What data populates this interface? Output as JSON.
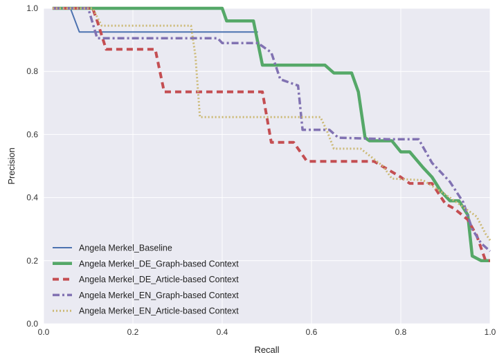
{
  "chart_data": {
    "type": "line",
    "xlabel": "Recall",
    "ylabel": "Precision",
    "xlim": [
      0.0,
      1.0
    ],
    "ylim": [
      0.0,
      1.0
    ],
    "grid": true,
    "legend_position": "lower-left",
    "x_ticks": [
      "0.0",
      "0.2",
      "0.4",
      "0.6",
      "0.8",
      "1.0"
    ],
    "y_ticks": [
      "0.0",
      "0.2",
      "0.4",
      "0.6",
      "0.8",
      "1.0"
    ],
    "series": [
      {
        "name": "Angela Merkel_Baseline",
        "color": "#4c72b0",
        "style": "solid",
        "points": [
          [
            0.02,
            1.0
          ],
          [
            0.06,
            1.0
          ],
          [
            0.08,
            0.925
          ],
          [
            0.48,
            0.925
          ]
        ]
      },
      {
        "name": "Angela Merkel_DE_Graph-based Context",
        "color": "#55a868",
        "style": "solid-thick",
        "points": [
          [
            0.02,
            1.0
          ],
          [
            0.4,
            1.0
          ],
          [
            0.41,
            0.96
          ],
          [
            0.47,
            0.96
          ],
          [
            0.49,
            0.82
          ],
          [
            0.63,
            0.82
          ],
          [
            0.65,
            0.795
          ],
          [
            0.69,
            0.795
          ],
          [
            0.705,
            0.735
          ],
          [
            0.72,
            0.59
          ],
          [
            0.73,
            0.58
          ],
          [
            0.78,
            0.58
          ],
          [
            0.8,
            0.545
          ],
          [
            0.82,
            0.545
          ],
          [
            0.85,
            0.495
          ],
          [
            0.87,
            0.465
          ],
          [
            0.89,
            0.42
          ],
          [
            0.91,
            0.39
          ],
          [
            0.93,
            0.39
          ],
          [
            0.95,
            0.345
          ],
          [
            0.96,
            0.215
          ],
          [
            0.98,
            0.2
          ],
          [
            1.0,
            0.2
          ]
        ]
      },
      {
        "name": "Angela Merkel_DE_Article-based Context",
        "color": "#c44e52",
        "style": "dashed",
        "points": [
          [
            0.02,
            1.0
          ],
          [
            0.11,
            1.0
          ],
          [
            0.12,
            0.96
          ],
          [
            0.14,
            0.87
          ],
          [
            0.25,
            0.87
          ],
          [
            0.27,
            0.735
          ],
          [
            0.49,
            0.735
          ],
          [
            0.51,
            0.575
          ],
          [
            0.56,
            0.575
          ],
          [
            0.59,
            0.515
          ],
          [
            0.74,
            0.515
          ],
          [
            0.77,
            0.49
          ],
          [
            0.8,
            0.465
          ],
          [
            0.82,
            0.445
          ],
          [
            0.87,
            0.445
          ],
          [
            0.9,
            0.38
          ],
          [
            0.92,
            0.365
          ],
          [
            0.95,
            0.33
          ],
          [
            0.97,
            0.28
          ],
          [
            0.99,
            0.2
          ],
          [
            1.0,
            0.2
          ]
        ]
      },
      {
        "name": "Angela Merkel_EN_Graph-based Context",
        "color": "#8172b2",
        "style": "dashdot",
        "points": [
          [
            0.02,
            1.0
          ],
          [
            0.1,
            1.0
          ],
          [
            0.12,
            0.905
          ],
          [
            0.39,
            0.905
          ],
          [
            0.4,
            0.89
          ],
          [
            0.48,
            0.89
          ],
          [
            0.51,
            0.86
          ],
          [
            0.53,
            0.775
          ],
          [
            0.57,
            0.755
          ],
          [
            0.58,
            0.615
          ],
          [
            0.64,
            0.615
          ],
          [
            0.66,
            0.59
          ],
          [
            0.77,
            0.585
          ],
          [
            0.84,
            0.585
          ],
          [
            0.87,
            0.51
          ],
          [
            0.91,
            0.45
          ],
          [
            0.94,
            0.385
          ],
          [
            0.96,
            0.3
          ],
          [
            0.98,
            0.255
          ],
          [
            1.0,
            0.23
          ]
        ]
      },
      {
        "name": "Angela Merkel_EN_Article-based Context",
        "color": "#ccb974",
        "style": "dotted",
        "points": [
          [
            0.02,
            1.0
          ],
          [
            0.11,
            1.0
          ],
          [
            0.13,
            0.945
          ],
          [
            0.33,
            0.945
          ],
          [
            0.34,
            0.85
          ],
          [
            0.35,
            0.655
          ],
          [
            0.62,
            0.655
          ],
          [
            0.635,
            0.61
          ],
          [
            0.65,
            0.555
          ],
          [
            0.71,
            0.555
          ],
          [
            0.76,
            0.5
          ],
          [
            0.78,
            0.46
          ],
          [
            0.85,
            0.455
          ],
          [
            0.9,
            0.41
          ],
          [
            0.92,
            0.39
          ],
          [
            0.94,
            0.37
          ],
          [
            0.97,
            0.34
          ],
          [
            0.99,
            0.285
          ],
          [
            1.0,
            0.265
          ]
        ]
      }
    ]
  }
}
